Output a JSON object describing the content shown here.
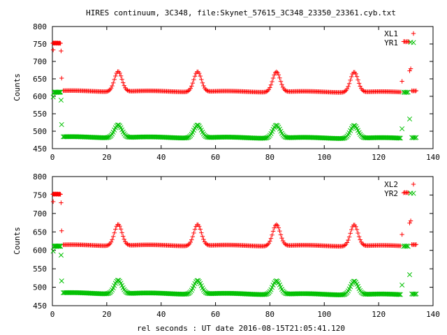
{
  "title": "HIRES continuum, 3C348, file:Skynet_57615_3C348_23350_23361.cyb.txt",
  "xlabel": "rel seconds : UT date 2016-08-15T21:05:41.120",
  "colors": {
    "xl": "#ff0000",
    "yr": "#00c000",
    "axis": "#000000"
  },
  "chart_data": [
    {
      "type": "scatter",
      "ylabel": "Counts",
      "xlim": [
        0,
        140
      ],
      "ylim": [
        450,
        800
      ],
      "xticks": [
        "0",
        "20",
        "40",
        "60",
        "80",
        "100",
        "120",
        "140"
      ],
      "yticks": [
        "450",
        "500",
        "550",
        "600",
        "650",
        "700",
        "750",
        "800"
      ],
      "legend_position": "top-right",
      "series": [
        {
          "name": "XL1",
          "marker": "plus",
          "points": [
            [
              0.2,
              752
            ],
            [
              0.4,
              753
            ],
            [
              0.6,
              752
            ],
            [
              0.8,
              753
            ],
            [
              1.0,
              752
            ],
            [
              1.2,
              753
            ],
            [
              1.4,
              752
            ],
            [
              1.6,
              753
            ],
            [
              1.8,
              752
            ],
            [
              2.0,
              753
            ],
            [
              2.2,
              752
            ],
            [
              2.4,
              752
            ],
            [
              2.6,
              753
            ],
            [
              2.8,
              752
            ],
            [
              3.0,
              752
            ],
            [
              0.3,
              733
            ],
            [
              3.2,
              730
            ],
            [
              3.4,
              652
            ]
          ],
          "baseline": {
            "x_start": 4.0,
            "x_end": 128.0,
            "level_start": 615,
            "level_end": 612,
            "peaks": [
              24.2,
              53.4,
              82.4,
              111.0
            ],
            "peak_height": 58,
            "peak_width": 1.4
          },
          "tail": [
            [
              128.6,
              643
            ],
            [
              129.2,
              757
            ],
            [
              129.6,
              757
            ],
            [
              130.0,
              756
            ],
            [
              130.4,
              757
            ],
            [
              130.8,
              757
            ],
            [
              131.2,
              756
            ],
            [
              131.4,
              673
            ],
            [
              131.8,
              679
            ],
            [
              132.2,
              616
            ],
            [
              132.6,
              615
            ],
            [
              133.0,
              616
            ],
            [
              133.4,
              615
            ],
            [
              133.8,
              616
            ]
          ]
        },
        {
          "name": "YR1",
          "marker": "cross",
          "points": [
            [
              0.3,
              598
            ],
            [
              0.6,
              612
            ],
            [
              0.8,
              611
            ],
            [
              1.0,
              612
            ],
            [
              1.2,
              612
            ],
            [
              1.4,
              611
            ],
            [
              1.6,
              612
            ],
            [
              1.8,
              611
            ],
            [
              2.0,
              612
            ],
            [
              2.2,
              612
            ],
            [
              2.4,
              611
            ],
            [
              2.6,
              612
            ],
            [
              2.8,
              612
            ],
            [
              3.0,
              612
            ],
            [
              3.2,
              589
            ],
            [
              3.4,
              519
            ]
          ],
          "baseline": {
            "x_start": 4.0,
            "x_end": 128.0,
            "level_start": 483,
            "level_end": 480,
            "peaks": [
              24.2,
              53.4,
              82.4,
              111.0
            ],
            "peak_height": 37,
            "peak_width": 1.4
          },
          "tail": [
            [
              128.6,
              507
            ],
            [
              129.2,
              612
            ],
            [
              129.6,
              611
            ],
            [
              130.0,
              612
            ],
            [
              130.4,
              611
            ],
            [
              130.8,
              612
            ],
            [
              131.4,
              535
            ],
            [
              131.8,
              755
            ],
            [
              132.2,
              482
            ],
            [
              132.6,
              481
            ],
            [
              133.0,
              482
            ],
            [
              133.4,
              481
            ],
            [
              133.8,
              482
            ]
          ]
        }
      ]
    },
    {
      "type": "scatter",
      "ylabel": "Counts",
      "xlim": [
        0,
        140
      ],
      "ylim": [
        450,
        800
      ],
      "xticks": [
        "0",
        "20",
        "40",
        "60",
        "80",
        "100",
        "120",
        "140"
      ],
      "yticks": [
        "450",
        "500",
        "550",
        "600",
        "650",
        "700",
        "750",
        "800"
      ],
      "legend_position": "top-right",
      "series": [
        {
          "name": "XL2",
          "marker": "plus",
          "points": [
            [
              0.2,
              752
            ],
            [
              0.4,
              753
            ],
            [
              0.6,
              752
            ],
            [
              0.8,
              753
            ],
            [
              1.0,
              752
            ],
            [
              1.2,
              753
            ],
            [
              1.4,
              752
            ],
            [
              1.6,
              753
            ],
            [
              1.8,
              752
            ],
            [
              2.0,
              753
            ],
            [
              2.2,
              752
            ],
            [
              2.4,
              752
            ],
            [
              2.6,
              753
            ],
            [
              2.8,
              752
            ],
            [
              3.0,
              752
            ],
            [
              0.3,
              732
            ],
            [
              3.2,
              729
            ],
            [
              3.4,
              653
            ]
          ],
          "baseline": {
            "x_start": 4.0,
            "x_end": 128.0,
            "level_start": 614,
            "level_end": 612,
            "peaks": [
              24.2,
              53.4,
              82.4,
              111.0
            ],
            "peak_height": 58,
            "peak_width": 1.4
          },
          "tail": [
            [
              128.6,
              643
            ],
            [
              129.2,
              756
            ],
            [
              129.6,
              757
            ],
            [
              130.0,
              756
            ],
            [
              130.4,
              757
            ],
            [
              130.8,
              756
            ],
            [
              131.4,
              674
            ],
            [
              131.8,
              680
            ],
            [
              132.2,
              616
            ],
            [
              132.6,
              615
            ],
            [
              133.0,
              616
            ],
            [
              133.4,
              615
            ],
            [
              133.8,
              616
            ]
          ]
        },
        {
          "name": "YR2",
          "marker": "cross",
          "points": [
            [
              0.3,
              598
            ],
            [
              0.6,
              611
            ],
            [
              0.8,
              612
            ],
            [
              1.0,
              611
            ],
            [
              1.2,
              612
            ],
            [
              1.4,
              611
            ],
            [
              1.6,
              612
            ],
            [
              1.8,
              611
            ],
            [
              2.0,
              612
            ],
            [
              2.2,
              611
            ],
            [
              2.4,
              612
            ],
            [
              2.6,
              611
            ],
            [
              2.8,
              612
            ],
            [
              3.0,
              611
            ],
            [
              3.2,
              587
            ],
            [
              3.4,
              517
            ]
          ],
          "baseline": {
            "x_start": 4.0,
            "x_end": 128.0,
            "level_start": 484,
            "level_end": 480,
            "peaks": [
              24.2,
              53.4,
              82.4,
              111.0
            ],
            "peak_height": 37,
            "peak_width": 1.4
          },
          "tail": [
            [
              128.6,
              506
            ],
            [
              129.2,
              611
            ],
            [
              129.6,
              612
            ],
            [
              130.0,
              611
            ],
            [
              130.4,
              612
            ],
            [
              130.8,
              611
            ],
            [
              131.4,
              534
            ],
            [
              131.8,
              755
            ],
            [
              132.2,
              482
            ],
            [
              132.6,
              481
            ],
            [
              133.0,
              482
            ],
            [
              133.4,
              481
            ],
            [
              133.8,
              482
            ]
          ]
        }
      ]
    }
  ]
}
